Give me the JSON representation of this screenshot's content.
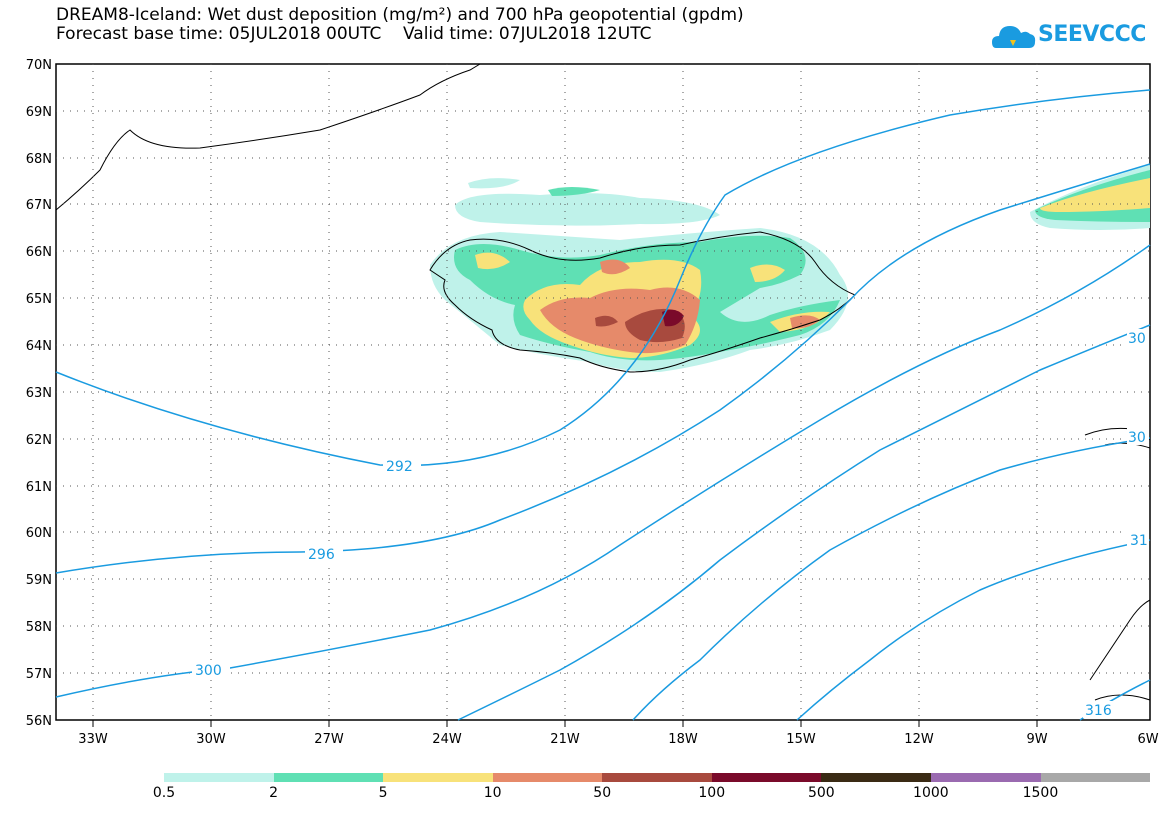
{
  "title_line1": "DREAM8-Iceland: Wet dust deposition (mg/m²) and 700 hPa geopotential (gpdm)",
  "title_line2": "Forecast base time: 05JUL2018 00UTC    Valid time: 07JUL2018 12UTC",
  "logo_text": "SEEVCCC",
  "lat_labels": [
    "70N",
    "69N",
    "68N",
    "67N",
    "66N",
    "65N",
    "64N",
    "63N",
    "62N",
    "61N",
    "60N",
    "59N",
    "58N",
    "57N",
    "56N"
  ],
  "lon_labels": [
    "33W",
    "30W",
    "27W",
    "24W",
    "21W",
    "18W",
    "15W",
    "12W",
    "9W",
    "6W"
  ],
  "contour_labels": [
    "292",
    "296",
    "300",
    "30",
    "30",
    "31",
    "316"
  ],
  "colorbar": {
    "colors": [
      "#bff2ea",
      "#5fe0b4",
      "#f8e27a",
      "#e68a6a",
      "#a84a3e",
      "#7a0a2a",
      "#3a2a14",
      "#9a6ab0",
      "#a8a8a8"
    ],
    "labels": [
      "0.5",
      "2",
      "5",
      "10",
      "50",
      "100",
      "500",
      "1000",
      "1500"
    ]
  }
}
